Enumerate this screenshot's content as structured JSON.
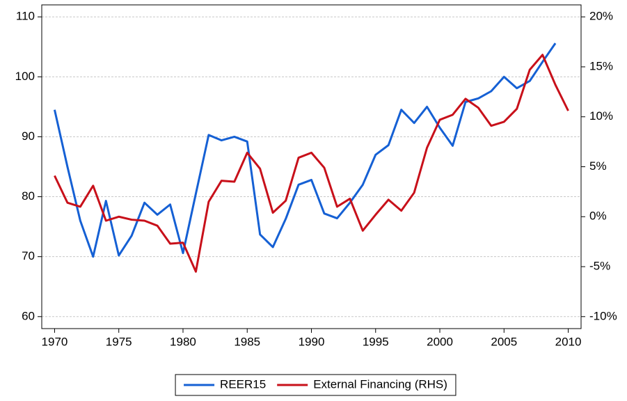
{
  "chart_data": {
    "type": "line",
    "x": [
      1970,
      1971,
      1972,
      1973,
      1974,
      1975,
      1976,
      1977,
      1978,
      1979,
      1980,
      1981,
      1982,
      1983,
      1984,
      1985,
      1986,
      1987,
      1988,
      1989,
      1990,
      1991,
      1992,
      1993,
      1994,
      1995,
      1996,
      1997,
      1998,
      1999,
      2000,
      2001,
      2002,
      2003,
      2004,
      2005,
      2006,
      2007,
      2008,
      2009,
      2010
    ],
    "xlim": [
      1969,
      2011
    ],
    "xticks": [
      1970,
      1975,
      1980,
      1985,
      1990,
      1995,
      2000,
      2005,
      2010
    ],
    "ylim": [
      58,
      112
    ],
    "yticks": [
      60,
      70,
      80,
      90,
      100,
      110
    ],
    "y2lim": [
      -11.2,
      21.2
    ],
    "y2ticks": [
      {
        "value": -10,
        "label": "-10%"
      },
      {
        "value": -5,
        "label": "-5%"
      },
      {
        "value": 0,
        "label": "0%"
      },
      {
        "value": 5,
        "label": "5%"
      },
      {
        "value": 10,
        "label": "10%"
      },
      {
        "value": 15,
        "label": "15%"
      },
      {
        "value": 20,
        "label": "20%"
      }
    ],
    "grid": true,
    "legend": "bottom",
    "series": [
      {
        "name": "REER15",
        "color": "#1560d4",
        "values": [
          94.5,
          85,
          76,
          70,
          79.3,
          70.2,
          73.5,
          79,
          77,
          78.7,
          70.6,
          80.5,
          90.3,
          89.4,
          90,
          89.2,
          73.7,
          71.6,
          76.3,
          82,
          82.8,
          77.2,
          76.4,
          79,
          82,
          87,
          88.6,
          94.5,
          92.3,
          95,
          91.5,
          88.5,
          95.8,
          96.4,
          97.6,
          100,
          98.1,
          99.3,
          102.5,
          105.6,
          null
        ]
      },
      {
        "name": "External Financing (RHS)",
        "color": "#c8101a",
        "axis": "y2",
        "values": [
          4.1,
          1.4,
          1.0,
          3.1,
          -0.4,
          0.0,
          -0.3,
          -0.4,
          -0.9,
          -2.7,
          -2.6,
          -5.5,
          1.5,
          3.6,
          3.5,
          6.4,
          4.8,
          0.4,
          1.6,
          5.9,
          6.4,
          4.9,
          1.0,
          1.8,
          -1.4,
          0.2,
          1.7,
          0.6,
          2.4,
          6.9,
          9.7,
          10.2,
          11.8,
          10.9,
          9.1,
          9.5,
          10.8,
          14.7,
          16.2,
          13.2,
          10.6
        ]
      }
    ]
  }
}
